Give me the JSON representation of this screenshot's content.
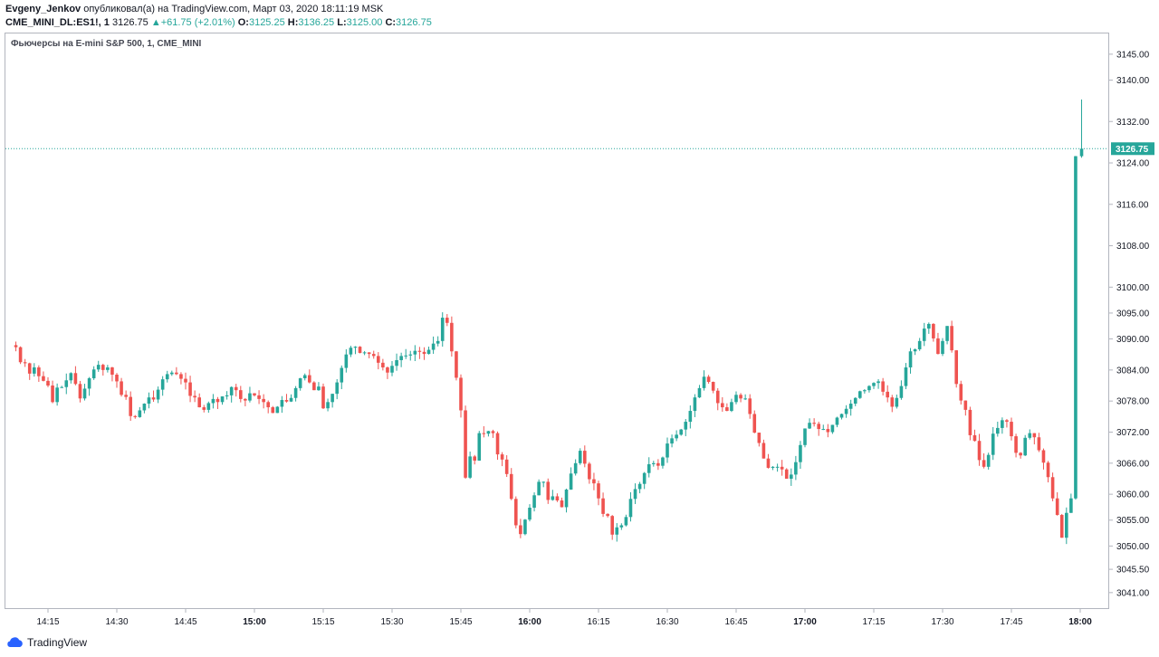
{
  "header": {
    "author": "Evgeny_Jenkov",
    "published": "опубликовал(а) на TradingView.com, Март 03, 2020 18:11:19 MSK",
    "symbol": "CME_MINI_DL:ES1!, 1",
    "last": "3126.75",
    "change_arrow": "▲",
    "change": "+61.75 (+2.01%)",
    "o_label": "O:",
    "o_value": "3125.25",
    "h_label": "H:",
    "h_value": "3136.25",
    "l_label": "L:",
    "l_value": "3125.00",
    "c_label": "C:",
    "c_value": "3126.75"
  },
  "chart_title": "Фьючерсы на E-mini S&P 500, 1, CME_MINI",
  "footer": {
    "brand": "TradingView",
    "logo_icon": "tradingview-cloud-icon"
  },
  "colors": {
    "up": "#26a69a",
    "down": "#ef5350",
    "grid": "#b2b5be",
    "text": "#131722",
    "price_line": "#26a69a"
  },
  "chart_data": {
    "type": "candlestick",
    "title": "Фьючерсы на E-mini S&P 500, 1, CME_MINI",
    "xlabel": "",
    "ylabel": "",
    "ylim": [
      3038.0,
      3149.0
    ],
    "grid": false,
    "last_price": 3126.75,
    "y_ticks": [
      "3145.00",
      "3140.00",
      "3132.00",
      "3124.00",
      "3116.00",
      "3108.00",
      "3100.00",
      "3095.00",
      "3090.00",
      "3084.00",
      "3078.00",
      "3072.00",
      "3066.00",
      "3060.00",
      "3055.00",
      "3050.00",
      "3045.50",
      "3041.00"
    ],
    "x_ticks": [
      {
        "label": "14:15",
        "minutes": 855,
        "bold": false
      },
      {
        "label": "14:30",
        "minutes": 870,
        "bold": false
      },
      {
        "label": "14:45",
        "minutes": 885,
        "bold": false
      },
      {
        "label": "15:00",
        "minutes": 900,
        "bold": true
      },
      {
        "label": "15:15",
        "minutes": 915,
        "bold": false
      },
      {
        "label": "15:30",
        "minutes": 930,
        "bold": false
      },
      {
        "label": "15:45",
        "minutes": 945,
        "bold": false
      },
      {
        "label": "16:00",
        "minutes": 960,
        "bold": true
      },
      {
        "label": "16:15",
        "minutes": 975,
        "bold": false
      },
      {
        "label": "16:30",
        "minutes": 990,
        "bold": false
      },
      {
        "label": "16:45",
        "minutes": 1005,
        "bold": false
      },
      {
        "label": "17:00",
        "minutes": 1020,
        "bold": true
      },
      {
        "label": "17:15",
        "minutes": 1035,
        "bold": false
      },
      {
        "label": "17:30",
        "minutes": 1050,
        "bold": false
      },
      {
        "label": "17:45",
        "minutes": 1065,
        "bold": false
      },
      {
        "label": "18:00",
        "minutes": 1080,
        "bold": true
      }
    ],
    "start_minute": 848,
    "close_path": [
      3088.8,
      3088.4,
      3085.5,
      3085.3,
      3083.3,
      3084.5,
      3082.8,
      3081.9,
      3081.0,
      3077.8,
      3080.6,
      3080.7,
      3082.0,
      3083.4,
      3081.3,
      3078.5,
      3080.4,
      3082.4,
      3084.1,
      3085.0,
      3084.0,
      3084.5,
      3083.1,
      3081.8,
      3079.2,
      3078.8,
      3075.1,
      3074.9,
      3076.2,
      3077.5,
      3078.7,
      3078.3,
      3080.2,
      3082.2,
      3083.2,
      3083.5,
      3083.2,
      3082.3,
      3081.6,
      3079.0,
      3078.7,
      3076.8,
      3076.3,
      3077.6,
      3078.4,
      3077.8,
      3078.9,
      3079.1,
      3080.7,
      3080.1,
      3078.4,
      3078.1,
      3079.5,
      3079.1,
      3078.4,
      3077.8,
      3076.8,
      3075.7,
      3076.9,
      3078.2,
      3077.9,
      3078.6,
      3080.5,
      3082.4,
      3083.0,
      3081.6,
      3080.1,
      3080.8,
      3076.6,
      3077.8,
      3079.4,
      3081.6,
      3084.4,
      3087.0,
      3088.3,
      3088.5,
      3087.3,
      3087.4,
      3087.1,
      3086.7,
      3085.4,
      3084.5,
      3083.5,
      3084.8,
      3085.9,
      3086.7,
      3086.8,
      3087.0,
      3087.7,
      3087.5,
      3087.1,
      3087.9,
      3089.1,
      3089.6,
      3094.1,
      3093.1,
      3087.6,
      3082.5,
      3076.2,
      3063.2,
      3067.3,
      3066.5,
      3071.8,
      3071.7,
      3072.2,
      3071.8,
      3067.7,
      3066.7,
      3063.9,
      3059.1,
      3054.0,
      3052.3,
      3055.1,
      3057.4,
      3059.8,
      3062.4,
      3062.4,
      3058.9,
      3059.6,
      3058.8,
      3057.5,
      3060.9,
      3064.0,
      3066.0,
      3068.4,
      3065.9,
      3062.9,
      3062.1,
      3059.2,
      3056.2,
      3055.8,
      3052.2,
      3053.6,
      3054.0,
      3055.6,
      3059.1,
      3061.0,
      3062.0,
      3064.1,
      3065.8,
      3066.0,
      3065.5,
      3067.1,
      3069.8,
      3070.8,
      3071.5,
      3072.5,
      3074.0,
      3076.1,
      3078.7,
      3080.5,
      3082.7,
      3081.7,
      3080.0,
      3077.6,
      3076.8,
      3076.1,
      3077.8,
      3079.2,
      3078.5,
      3078.5,
      3075.5,
      3071.9,
      3069.9,
      3066.9,
      3065.1,
      3065.3,
      3065.3,
      3064.8,
      3063.0,
      3063.8,
      3066.2,
      3069.5,
      3072.7,
      3073.8,
      3073.6,
      3072.6,
      3072.6,
      3072.0,
      3073.4,
      3074.8,
      3075.5,
      3076.5,
      3077.5,
      3078.6,
      3079.9,
      3080.1,
      3080.9,
      3081.5,
      3081.8,
      3079.8,
      3078.7,
      3076.9,
      3078.6,
      3080.9,
      3084.5,
      3087.6,
      3088.0,
      3089.6,
      3092.0,
      3092.9,
      3090.1,
      3087.1,
      3089.6,
      3092.5,
      3087.8,
      3081.3,
      3078.1,
      3076.3,
      3071.4,
      3070.3,
      3066.6,
      3065.3,
      3067.6,
      3071.7,
      3072.8,
      3074.3,
      3074.0,
      3071.2,
      3068.0,
      3067.5,
      3070.9,
      3071.8,
      3071.0,
      3068.5,
      3066.1,
      3063.3,
      3059.2,
      3056.0,
      3051.6,
      3056.4,
      3059.2,
      3125.3,
      3126.75
    ],
    "x_last_minute": 1080.3
  }
}
